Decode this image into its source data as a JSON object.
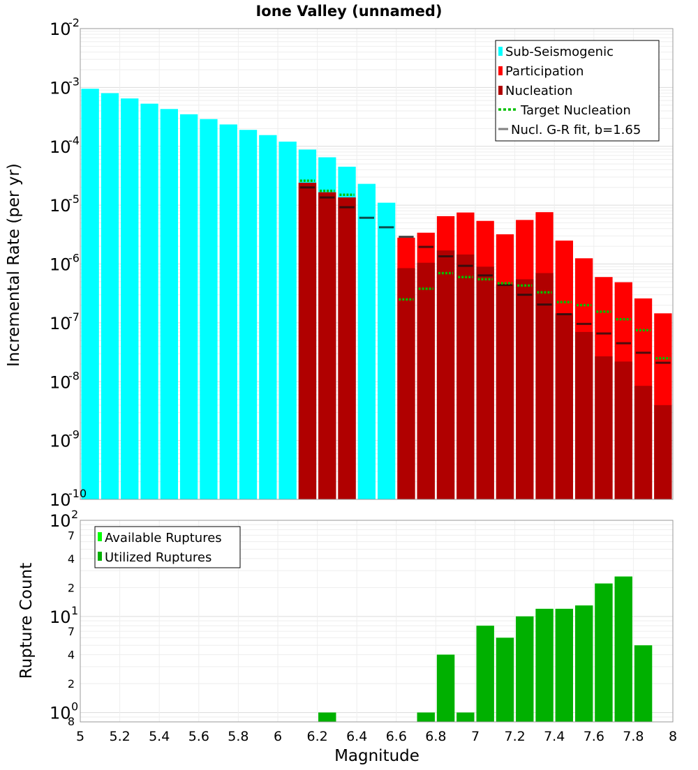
{
  "chart_data": [
    {
      "type": "bar",
      "title": "Ione Valley (unnamed)",
      "xlabel": "",
      "ylabel": "Incremental Rate (per yr)",
      "xlim": [
        5,
        8
      ],
      "yscale": "log",
      "ylim": [
        1e-10,
        0.01
      ],
      "y_exponents": [
        "-10",
        "-9",
        "-8",
        "-7",
        "-6",
        "-5",
        "-4",
        "-3",
        "-2"
      ],
      "y_base": "10",
      "grid": true,
      "legend_position": "top-right",
      "bin_width": 0.1,
      "series": [
        {
          "name": "Sub-Seismogenic",
          "color": "#00ffff",
          "kind": "bar",
          "x": [
            5.05,
            5.15,
            5.25,
            5.35,
            5.45,
            5.55,
            5.65,
            5.75,
            5.85,
            5.95,
            6.05,
            6.15,
            6.25,
            6.35,
            6.45,
            6.55
          ],
          "values": [
            0.00095,
            0.0008,
            0.00065,
            0.00053,
            0.00043,
            0.00035,
            0.00029,
            0.000235,
            0.00019,
            0.000155,
            0.00012,
            8.8e-05,
            6.5e-05,
            4.5e-05,
            2.3e-05,
            1.1e-05
          ]
        },
        {
          "name": "Participation",
          "color": "#ff0000",
          "kind": "bar",
          "x": [
            6.15,
            6.25,
            6.35,
            6.65,
            6.75,
            6.85,
            6.95,
            7.05,
            7.15,
            7.25,
            7.35,
            7.45,
            7.55,
            7.65,
            7.75,
            7.85,
            7.95
          ],
          "values": [
            2.4e-05,
            1.65e-05,
            1.35e-05,
            2.8e-06,
            3.4e-06,
            6.5e-06,
            7.5e-06,
            5.4e-06,
            3.2e-06,
            5.6e-06,
            7.6e-06,
            2.5e-06,
            1.25e-06,
            6e-07,
            4.9e-07,
            2.6e-07,
            1.45e-07
          ]
        },
        {
          "name": "Nucleation",
          "color": "#b00000",
          "kind": "bar",
          "x": [
            6.15,
            6.25,
            6.35,
            6.65,
            6.75,
            6.85,
            6.95,
            7.05,
            7.15,
            7.25,
            7.35,
            7.45,
            7.55,
            7.65,
            7.75,
            7.85,
            7.95
          ],
          "values": [
            2.4e-05,
            1.65e-05,
            1.35e-05,
            8.5e-07,
            1.05e-06,
            1.7e-06,
            1.45e-06,
            9e-07,
            4.5e-07,
            5.5e-07,
            7e-07,
            1.45e-07,
            7e-08,
            2.7e-08,
            2.2e-08,
            8.5e-09,
            4e-09
          ]
        },
        {
          "name": "Target Nucleation",
          "color": "#00c000",
          "kind": "dashed-step",
          "x": [
            6.15,
            6.25,
            6.35,
            6.65,
            6.75,
            6.85,
            6.95,
            7.05,
            7.15,
            7.25,
            7.35,
            7.45,
            7.55,
            7.65,
            7.75,
            7.85,
            7.95
          ],
          "values": [
            2.6e-05,
            1.75e-05,
            1.5e-05,
            2.5e-07,
            3.8e-07,
            7e-07,
            6e-07,
            5.5e-07,
            4.7e-07,
            4.3e-07,
            3.3e-07,
            2.25e-07,
            2e-07,
            1.55e-07,
            1.15e-07,
            7.5e-08,
            2.5e-08
          ]
        },
        {
          "name": "Nucl. G-R fit, b=1.65",
          "color": "#808080",
          "kind": "step",
          "x": [
            6.15,
            6.25,
            6.35,
            6.45,
            6.55,
            6.65,
            6.75,
            6.85,
            6.95,
            7.05,
            7.15,
            7.25,
            7.35,
            7.45,
            7.55,
            7.65,
            7.75,
            7.85,
            7.95
          ],
          "values": [
            2e-05,
            1.35e-05,
            9.2e-06,
            6.1e-06,
            4.2e-06,
            2.9e-06,
            1.95e-06,
            1.35e-06,
            9.3e-07,
            6.4e-07,
            4.4e-07,
            3e-07,
            2.05e-07,
            1.4e-07,
            9.6e-08,
            6.6e-08,
            4.5e-08,
            3.1e-08,
            2.1e-08
          ]
        }
      ]
    },
    {
      "type": "bar",
      "title": "",
      "xlabel": "Magnitude",
      "ylabel": "Rupture Count",
      "xlim": [
        5,
        8
      ],
      "yscale": "log",
      "ylim": [
        0.8,
        100
      ],
      "x_ticks": [
        "5",
        "5.2",
        "5.4",
        "5.6",
        "5.8",
        "6",
        "6.2",
        "6.4",
        "6.6",
        "6.8",
        "7",
        "7.2",
        "7.4",
        "7.6",
        "7.8",
        "8"
      ],
      "y_exponents": [
        "0",
        "1",
        "2"
      ],
      "y_base": "10",
      "y_minor_labels": [
        "8",
        "2",
        "4",
        "7",
        "2",
        "4",
        "7"
      ],
      "grid": true,
      "legend_position": "top-left",
      "bin_width": 0.1,
      "series": [
        {
          "name": "Available Ruptures",
          "color": "#00ff00",
          "kind": "bar",
          "x": [
            6.25,
            6.75,
            6.85,
            6.95,
            7.05,
            7.15,
            7.25,
            7.35,
            7.45,
            7.55,
            7.65,
            7.75,
            7.85
          ],
          "values": [
            1,
            1,
            4,
            1,
            8,
            6,
            10,
            12,
            12,
            13,
            22,
            26,
            5
          ]
        },
        {
          "name": "Utilized Ruptures",
          "color": "#00b000",
          "kind": "bar",
          "x": [
            6.25,
            6.75,
            6.85,
            6.95,
            7.05,
            7.15,
            7.25,
            7.35,
            7.45,
            7.55,
            7.65,
            7.75,
            7.85
          ],
          "values": [
            1,
            1,
            4,
            1,
            8,
            6,
            10,
            12,
            12,
            13,
            22,
            26,
            5
          ]
        }
      ]
    }
  ]
}
